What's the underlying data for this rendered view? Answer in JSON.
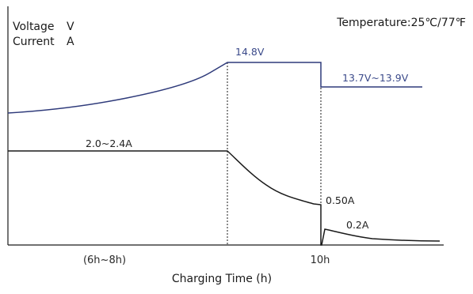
{
  "chart_data": {
    "type": "line",
    "title": "",
    "temperature_label": "Temperature:25℃/77℉",
    "y_labels": [
      {
        "name": "Voltage",
        "unit": "V"
      },
      {
        "name": "Current",
        "unit": "A"
      }
    ],
    "xlabel": "Charging Time (h)",
    "x_ticks": [
      {
        "label": "(6h~8h)",
        "at": "stage-1"
      },
      {
        "label": "10h",
        "at": "10h"
      }
    ],
    "stage_boundaries": [
      "end of constant current",
      "10h"
    ],
    "series": [
      {
        "name": "Voltage",
        "color": "#2e3a7a",
        "stage_labels": [
          "14.8V",
          "13.7V~13.9V"
        ]
      },
      {
        "name": "Current",
        "color": "#1a1a1a",
        "stage_labels": [
          "2.0~2.4A",
          "0.50A",
          "0.2A"
        ]
      }
    ],
    "grid": false,
    "legend": "none"
  }
}
